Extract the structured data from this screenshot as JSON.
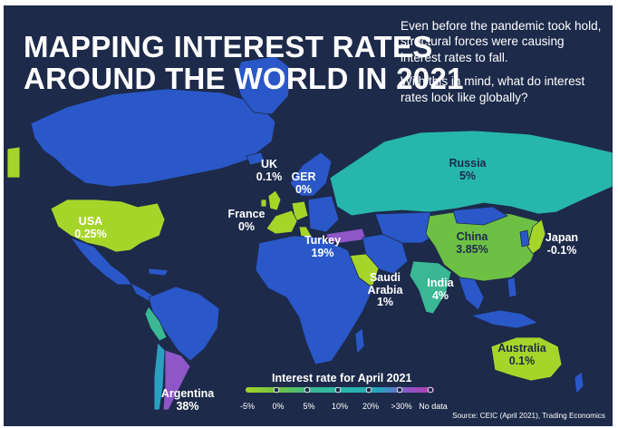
{
  "title": "MAPPING INTEREST RATES\nAROUND THE WORLD IN 2021",
  "intro": {
    "paragraph_1": "Even before the pandemic took hold, structural forces were causing interest rates to fall.",
    "paragraph_2": "With this in mind, what do interest rates look like globally?"
  },
  "countries": [
    {
      "id": "uk",
      "name": "UK",
      "value": "0.1%"
    },
    {
      "id": "ger",
      "name": "GER",
      "value": "0%"
    },
    {
      "id": "france",
      "name": "France",
      "value": "0%"
    },
    {
      "id": "usa",
      "name": "USA",
      "value": "0.25%"
    },
    {
      "id": "turkey",
      "name": "Turkey",
      "value": "19%"
    },
    {
      "id": "saudi-arabia",
      "name": "Saudi Arabia",
      "value": "1%"
    },
    {
      "id": "russia",
      "name": "Russia",
      "value": "5%"
    },
    {
      "id": "china",
      "name": "China",
      "value": "3.85%"
    },
    {
      "id": "japan",
      "name": "Japan",
      "value": "-0.1%"
    },
    {
      "id": "india",
      "name": "India",
      "value": "4%"
    },
    {
      "id": "australia",
      "name": "Australia",
      "value": "0.1%"
    },
    {
      "id": "argentina",
      "name": "Argentina",
      "value": "38%"
    }
  ],
  "legend": {
    "title": "Interest rate for April 2021",
    "ticks": [
      "-5%",
      "0%",
      "5%",
      "10%",
      "20%",
      ">30%",
      "No data"
    ]
  },
  "colors": {
    "background": "#1d2a4a",
    "no_data_land": "#2a58c9",
    "scale": [
      "#a6d52a",
      "#6ec045",
      "#3ab894",
      "#27b6ab",
      "#2aa0c0",
      "#8e56c8",
      "#b73aa8"
    ],
    "text": "#ffffff"
  },
  "source": "Source: CEIC (April 2021), Trading Economics"
}
